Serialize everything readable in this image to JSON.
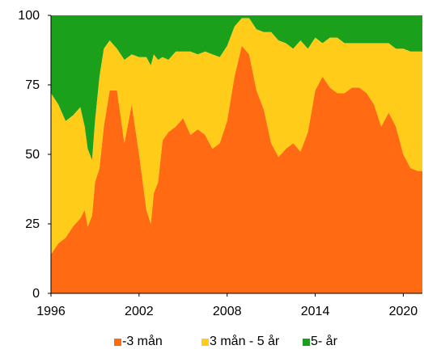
{
  "chart_data": {
    "type": "area",
    "stacked": true,
    "title": "",
    "xlabel": "",
    "ylabel": "",
    "xlim": [
      1996,
      2021.3
    ],
    "ylim": [
      0,
      100
    ],
    "x_ticks": [
      "1996",
      "2002",
      "2008",
      "2014",
      "2020"
    ],
    "y_ticks": [
      "0",
      "25",
      "50",
      "75",
      "100"
    ],
    "legend_position": "bottom",
    "grid": false,
    "x": [
      1996.0,
      1996.5,
      1997.0,
      1997.5,
      1998.0,
      1998.3,
      1998.5,
      1998.8,
      1999.0,
      1999.3,
      1999.6,
      2000.0,
      2000.5,
      2001.0,
      2001.5,
      2002.0,
      2002.5,
      2002.8,
      2003.0,
      2003.3,
      2003.6,
      2004.0,
      2004.5,
      2005.0,
      2005.5,
      2006.0,
      2006.5,
      2007.0,
      2007.5,
      2008.0,
      2008.5,
      2009.0,
      2009.5,
      2010.0,
      2010.5,
      2011.0,
      2011.5,
      2012.0,
      2012.5,
      2013.0,
      2013.5,
      2014.0,
      2014.5,
      2015.0,
      2015.5,
      2016.0,
      2016.5,
      2017.0,
      2017.5,
      2018.0,
      2018.5,
      2019.0,
      2019.5,
      2020.0,
      2020.5,
      2021.0,
      2021.3
    ],
    "series": [
      {
        "name": "-3 mån",
        "color": "#ff6a13",
        "values": [
          14,
          18,
          20,
          24,
          27,
          30,
          24,
          28,
          40,
          45,
          60,
          73,
          73,
          54,
          68,
          50,
          30,
          25,
          36,
          40,
          55,
          58,
          60,
          63,
          57,
          59,
          57,
          52,
          54,
          62,
          78,
          89,
          86,
          73,
          66,
          54,
          49,
          52,
          54,
          51,
          58,
          73,
          78,
          74,
          72,
          72,
          74,
          74,
          72,
          68,
          60,
          65,
          60,
          50,
          45,
          44,
          44
        ]
      },
      {
        "name": "3 mån - 5 år",
        "color": "#ffcc1a",
        "values": [
          58,
          50,
          42,
          40,
          40,
          30,
          28,
          20,
          22,
          33,
          28,
          18,
          15,
          30,
          18,
          35,
          55,
          57,
          50,
          44,
          30,
          26,
          27,
          24,
          30,
          27,
          30,
          34,
          31,
          27,
          18,
          10,
          13,
          22,
          28,
          40,
          42,
          38,
          34,
          40,
          30,
          19,
          12,
          18,
          20,
          18,
          16,
          16,
          18,
          22,
          30,
          25,
          28,
          38,
          42,
          43,
          43
        ]
      },
      {
        "name": "5- år",
        "color": "#1aa01a",
        "values": [
          28,
          32,
          38,
          36,
          33,
          40,
          48,
          52,
          38,
          22,
          12,
          9,
          12,
          16,
          14,
          15,
          15,
          18,
          14,
          16,
          15,
          16,
          13,
          13,
          13,
          14,
          13,
          14,
          15,
          11,
          4,
          1,
          1,
          5,
          6,
          6,
          9,
          10,
          12,
          9,
          12,
          8,
          10,
          8,
          8,
          10,
          10,
          10,
          10,
          10,
          10,
          10,
          12,
          12,
          13,
          13,
          13
        ]
      }
    ]
  },
  "colors": {
    "axis": "#000000",
    "background": "#ffffff"
  }
}
